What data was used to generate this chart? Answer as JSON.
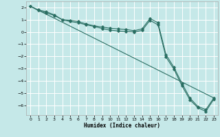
{
  "title": "",
  "xlabel": "Humidex (Indice chaleur)",
  "background_color": "#c5e8e8",
  "grid_color": "#e8f8f8",
  "line_color": "#2a6e62",
  "xlim": [
    -0.5,
    23.5
  ],
  "ylim": [
    -6.8,
    2.5
  ],
  "xticks": [
    0,
    1,
    2,
    3,
    4,
    5,
    6,
    7,
    8,
    9,
    10,
    11,
    12,
    13,
    14,
    15,
    16,
    17,
    18,
    19,
    20,
    21,
    22,
    23
  ],
  "yticks": [
    -6,
    -5,
    -4,
    -3,
    -2,
    -1,
    0,
    1,
    2
  ],
  "line1_x": [
    0,
    1,
    2,
    3,
    4,
    5,
    6,
    7,
    8,
    9,
    10,
    11,
    12,
    13,
    14,
    15,
    16,
    17,
    18,
    19,
    20,
    21,
    22,
    23
  ],
  "line1_y": [
    2.1,
    1.8,
    1.65,
    1.4,
    1.0,
    0.95,
    0.85,
    0.65,
    0.5,
    0.4,
    0.3,
    0.25,
    0.2,
    0.1,
    0.25,
    1.1,
    0.75,
    -1.85,
    -2.9,
    -4.2,
    -5.4,
    -6.1,
    -6.35,
    -5.4
  ],
  "line2_x": [
    0,
    1,
    2,
    3,
    4,
    5,
    6,
    7,
    8,
    9,
    10,
    11,
    12,
    13,
    14,
    15,
    16,
    17,
    18,
    19,
    20,
    21,
    22,
    23
  ],
  "line2_y": [
    2.1,
    1.75,
    1.55,
    1.35,
    1.0,
    0.85,
    0.75,
    0.58,
    0.45,
    0.28,
    0.15,
    0.08,
    0.03,
    0.0,
    0.12,
    0.95,
    0.58,
    -2.05,
    -3.05,
    -4.4,
    -5.55,
    -6.2,
    -6.5,
    -5.5
  ],
  "line3_x": [
    0,
    23
  ],
  "line3_y": [
    2.1,
    -5.4
  ],
  "marker1_x": [
    0,
    1,
    2,
    3,
    4,
    5,
    6,
    7,
    8,
    9,
    10,
    11,
    12,
    13,
    14,
    15,
    16,
    17,
    18,
    19,
    20,
    21,
    22,
    23
  ],
  "marker1_y": [
    2.1,
    1.8,
    1.65,
    1.4,
    1.0,
    0.95,
    0.85,
    0.65,
    0.5,
    0.4,
    0.3,
    0.25,
    0.2,
    0.1,
    0.25,
    1.1,
    0.75,
    -1.85,
    -2.9,
    -4.2,
    -5.4,
    -6.1,
    -6.35,
    -5.4
  ]
}
